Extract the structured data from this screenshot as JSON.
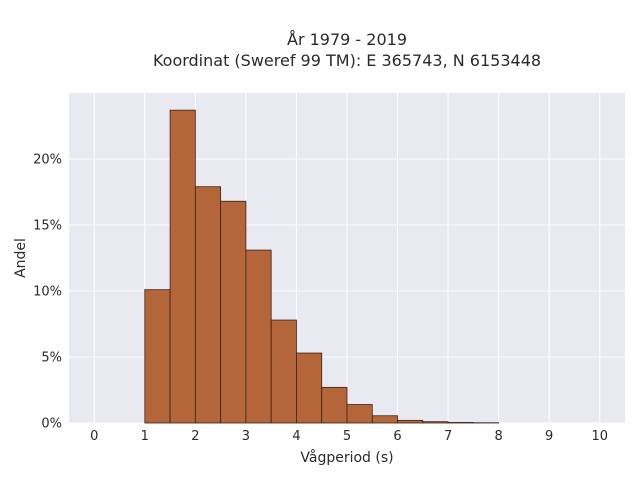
{
  "chart_data": {
    "type": "bar",
    "title_lines": [
      "År 1979 - 2019",
      "Koordinat (Sweref 99 TM): E 365743, N 6153448"
    ],
    "xlabel": "Vågperiod (s)",
    "ylabel": "Andel",
    "xlim": [
      -0.5,
      10.5
    ],
    "ylim": [
      0,
      25
    ],
    "x_ticks": [
      0,
      1,
      2,
      3,
      4,
      5,
      6,
      7,
      8,
      9,
      10
    ],
    "y_ticks": [
      0,
      5,
      10,
      15,
      20
    ],
    "y_tick_labels": [
      "0%",
      "5%",
      "10%",
      "15%",
      "20%"
    ],
    "bin_width": 0.5,
    "bins": [
      {
        "start": 1.0,
        "value": 10.1
      },
      {
        "start": 1.5,
        "value": 23.7
      },
      {
        "start": 2.0,
        "value": 17.9
      },
      {
        "start": 2.5,
        "value": 16.8
      },
      {
        "start": 3.0,
        "value": 13.1
      },
      {
        "start": 3.5,
        "value": 7.8
      },
      {
        "start": 4.0,
        "value": 5.3
      },
      {
        "start": 4.5,
        "value": 2.7
      },
      {
        "start": 5.0,
        "value": 1.4
      },
      {
        "start": 5.5,
        "value": 0.55
      },
      {
        "start": 6.0,
        "value": 0.2
      },
      {
        "start": 6.5,
        "value": 0.1
      },
      {
        "start": 7.0,
        "value": 0.04
      },
      {
        "start": 7.5,
        "value": 0.02
      }
    ],
    "colors": {
      "bar_fill": "#b5653a",
      "bar_stroke": "#3a2418",
      "plot_bg": "#e9e9f1",
      "grid": "#ffffff"
    },
    "grid": true
  }
}
